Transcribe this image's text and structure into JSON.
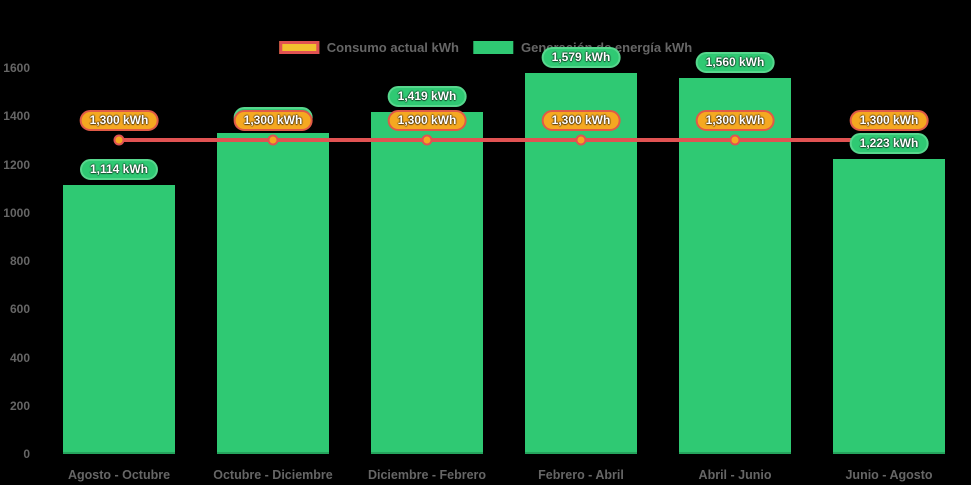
{
  "chart": {
    "background_color": "#000000",
    "text_color": "#666666",
    "legend": {
      "position": "top",
      "items": [
        {
          "label": "Consumo actual kWh",
          "swatch_fill": "#F2C12E",
          "swatch_border": "#E15252"
        },
        {
          "label": "Generación de energía kWh",
          "swatch_fill": "#2FC973",
          "swatch_border": "#2FC973"
        }
      ]
    }
  },
  "chart_data": {
    "type": "bar",
    "title": "",
    "xlabel": "",
    "ylabel": "",
    "ylim": [
      0,
      1600
    ],
    "yticks": [
      0,
      200,
      400,
      600,
      800,
      1000,
      1200,
      1400,
      1600
    ],
    "grid": false,
    "legend_position": "top",
    "categories": [
      "Agosto - Octubre",
      "Octubre - Diciembre",
      "Diciembre - Febrero",
      "Febrero - Abril",
      "Abril - Junio",
      "Junio - Agosto"
    ],
    "series": [
      {
        "name": "Consumo actual kWh",
        "type": "line",
        "line_color": "#E15252",
        "point_color": "#F5A821",
        "label_bg": "#F5A821",
        "label_border": "#E05A47",
        "values": [
          1300,
          1300,
          1300,
          1300,
          1300,
          1300
        ],
        "data_labels": [
          "1,300 kWh",
          "1,300 kWh",
          "1,300 kWh",
          "1,300 kWh",
          "1,300 kWh",
          "1,300 kWh"
        ]
      },
      {
        "name": "Generación de energía kWh",
        "type": "bar",
        "bar_color": "#2FC973",
        "label_bg": "#2FC973",
        "label_border": "#57D78D",
        "values": [
          1114,
          1330,
          1419,
          1579,
          1560,
          1223
        ],
        "data_labels": [
          "1,114 kWh",
          "1,330 kWh",
          "1,419 kWh",
          "1,579 kWh",
          "1,560 kWh",
          "1,223 kWh"
        ],
        "note": "second bar label is hidden behind the 1,300 kWh consumption label; its value is estimated from bar height"
      }
    ]
  }
}
